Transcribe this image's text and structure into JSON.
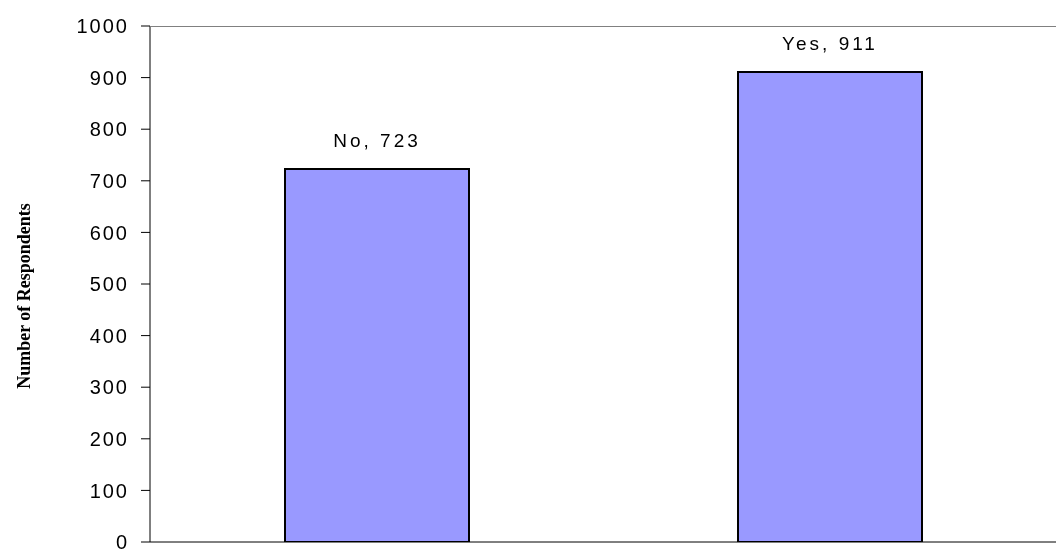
{
  "chart_data": {
    "type": "bar",
    "categories": [
      null,
      null
    ],
    "values": [
      723,
      911
    ],
    "color": "#9999ff",
    "value_labels": [
      "No, 723",
      "Yes, 911"
    ],
    "ylabel": "Number of Respondents",
    "ylim": [
      0,
      1000
    ],
    "yticks": [
      0,
      100,
      200,
      300,
      400,
      500,
      600,
      700,
      800,
      900,
      1000
    ]
  }
}
